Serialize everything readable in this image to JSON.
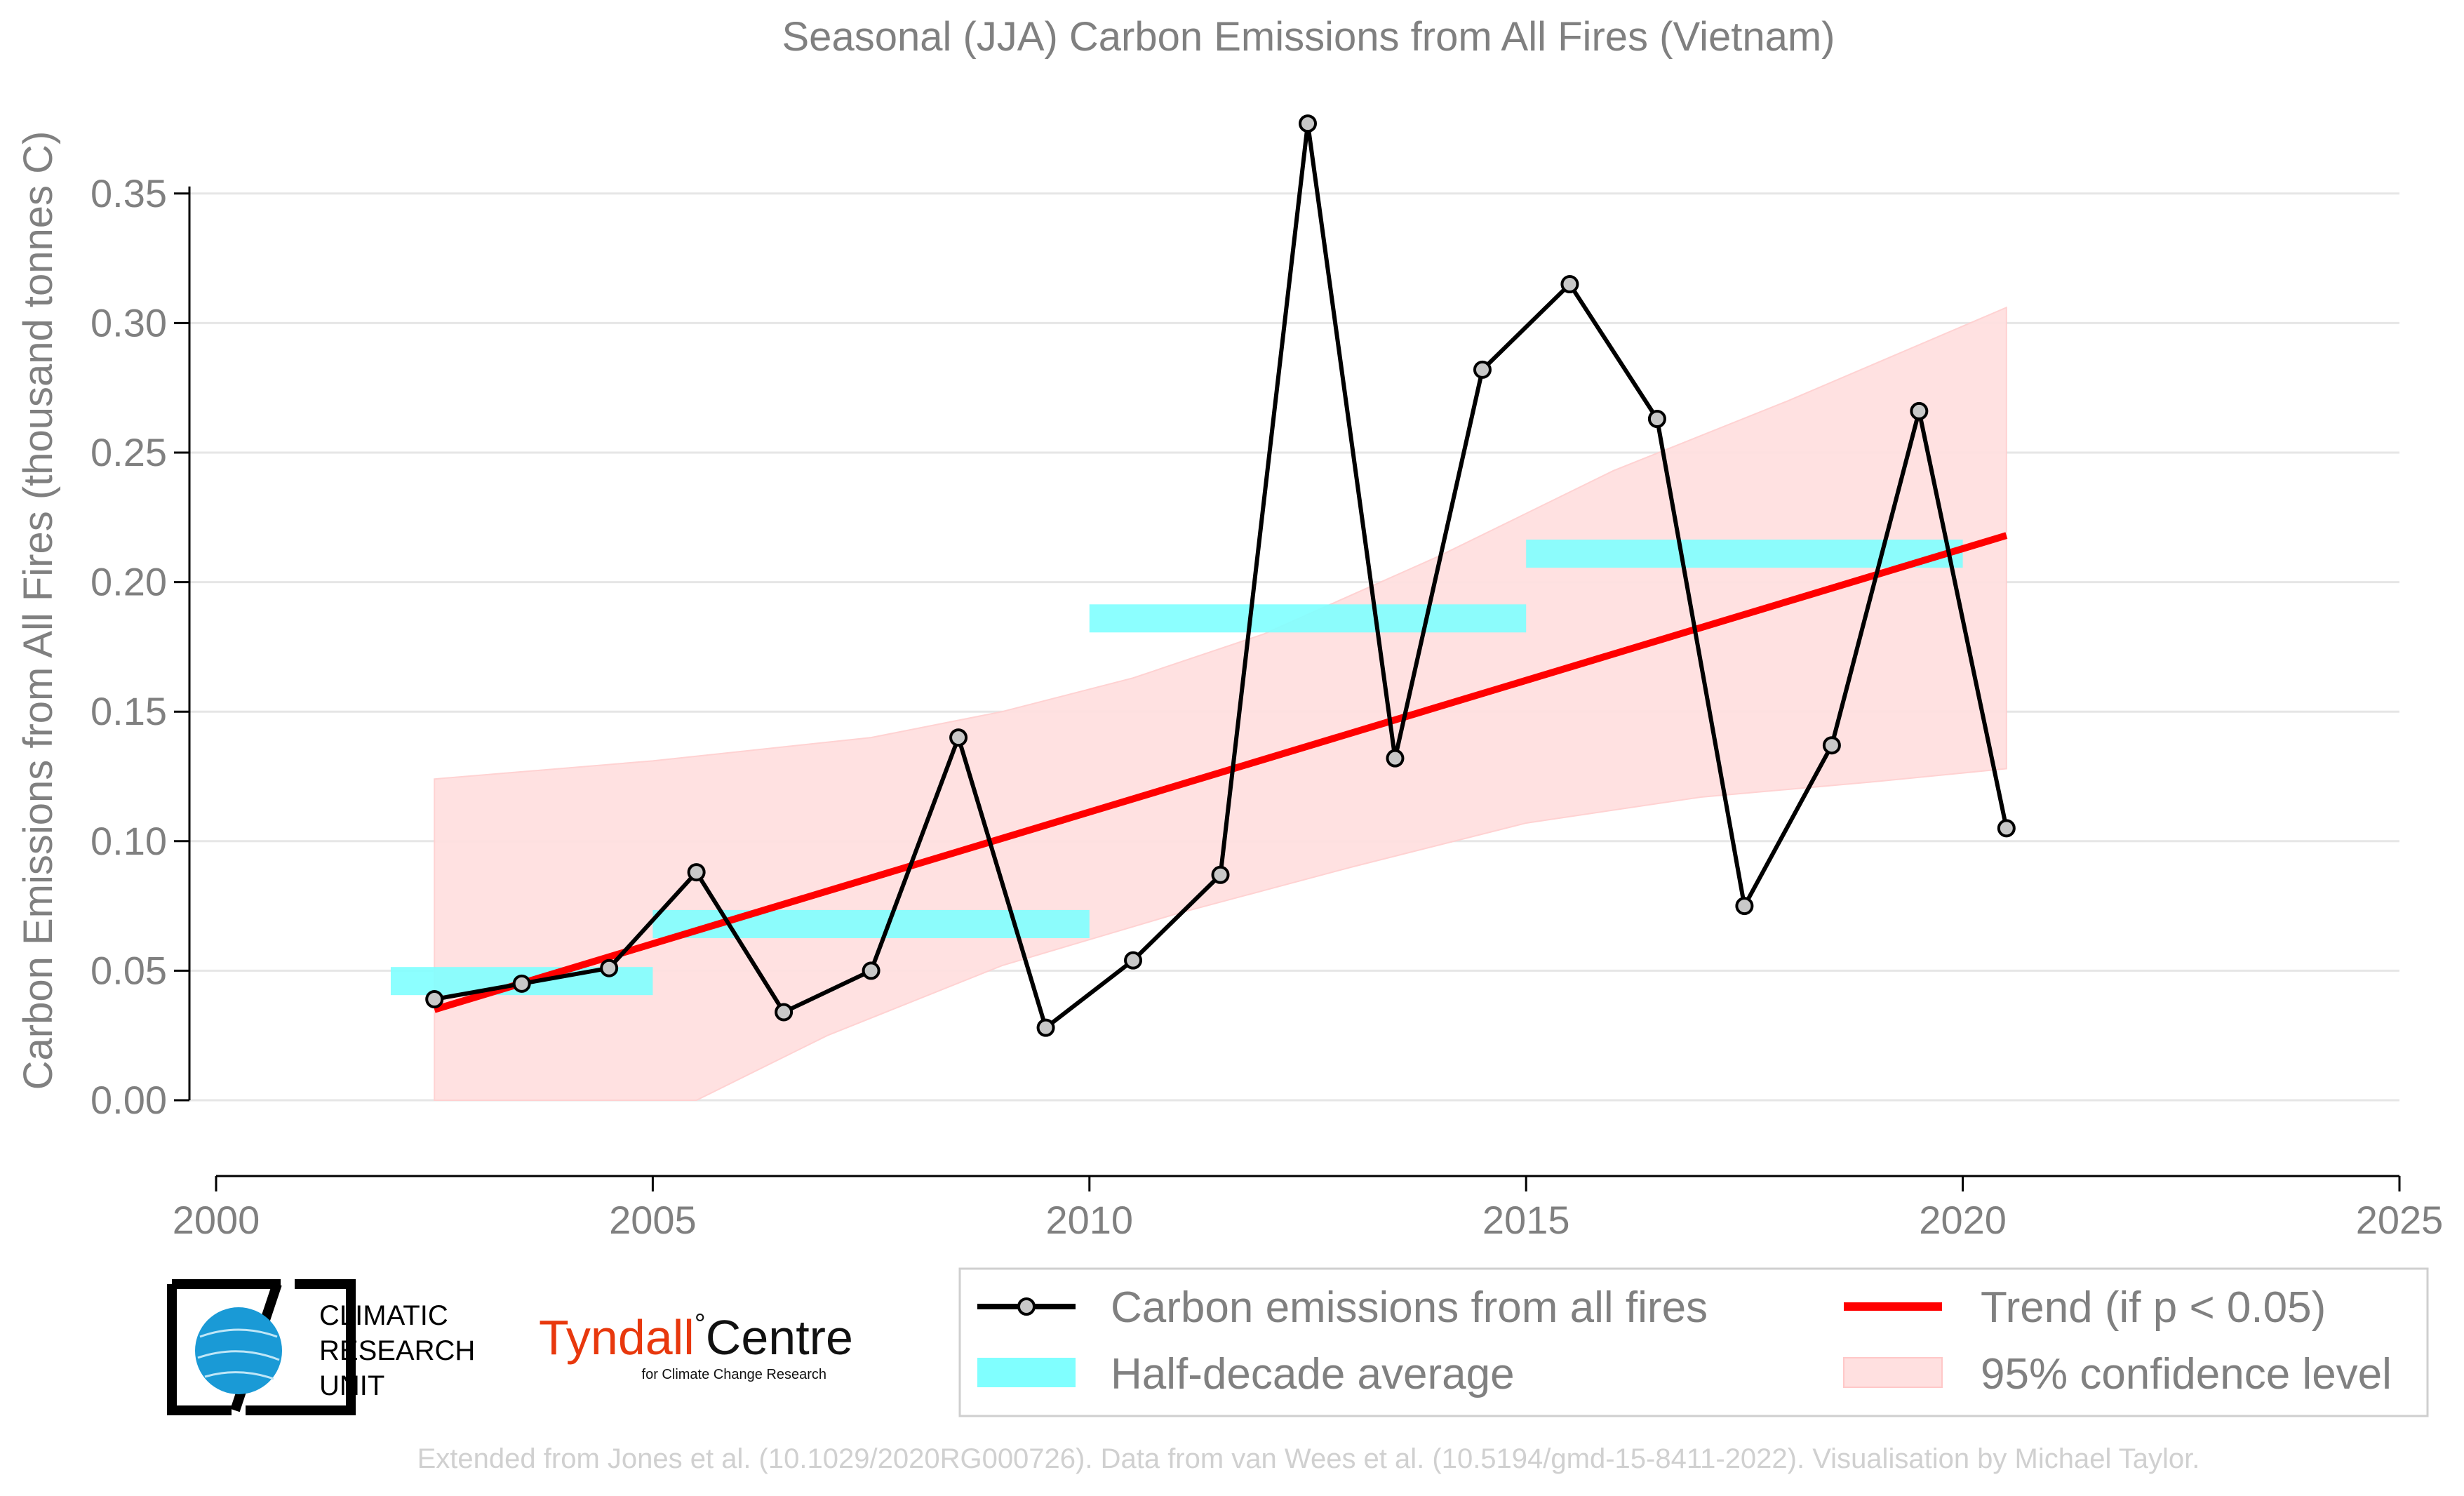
{
  "chart_data": {
    "type": "line",
    "title": "Seasonal (JJA) Carbon Emissions from All Fires (Vietnam)",
    "xlabel": "",
    "ylabel": "Carbon Emissions from All Fires (thousand tonnes C)",
    "xlim": [
      2000,
      2025
    ],
    "ylim": [
      -0.03,
      0.37
    ],
    "x_ticks": [
      2000,
      2005,
      2010,
      2015,
      2020,
      2025
    ],
    "y_ticks": [
      0.0,
      0.05,
      0.1,
      0.15,
      0.2,
      0.25,
      0.3,
      0.35
    ],
    "y_tick_labels": [
      "0.00",
      "0.05",
      "0.10",
      "0.15",
      "0.20",
      "0.25",
      "0.30",
      "0.35"
    ],
    "grid": "horizontal",
    "series": [
      {
        "name": "Carbon emissions from all fires",
        "type": "line",
        "color": "#000000",
        "marker_color": "#c8c8c8",
        "x": [
          2002.5,
          2003.5,
          2004.5,
          2005.5,
          2006.5,
          2007.5,
          2008.5,
          2009.5,
          2010.5,
          2011.5,
          2012.5,
          2013.5,
          2014.5,
          2015.5,
          2016.5,
          2017.5,
          2018.5,
          2019.5,
          2020.5
        ],
        "y": [
          0.039,
          0.045,
          0.051,
          0.088,
          0.034,
          0.05,
          0.14,
          0.028,
          0.054,
          0.087,
          0.377,
          0.132,
          0.282,
          0.315,
          0.263,
          0.075,
          0.137,
          0.266,
          0.105
        ]
      },
      {
        "name": "Half-decade average",
        "type": "step",
        "color": "#80ffff",
        "segments": [
          {
            "x0": 2002.0,
            "x1": 2005.0,
            "y": 0.046
          },
          {
            "x0": 2005.0,
            "x1": 2010.0,
            "y": 0.068
          },
          {
            "x0": 2010.0,
            "x1": 2015.0,
            "y": 0.186
          },
          {
            "x0": 2015.0,
            "x1": 2020.0,
            "y": 0.211
          }
        ]
      },
      {
        "name": "Trend (if p < 0.05)",
        "type": "line",
        "color": "#ff0000",
        "x": [
          2002.5,
          2020.5
        ],
        "y": [
          0.035,
          0.218
        ]
      },
      {
        "name": "95% confidence level",
        "type": "area",
        "color": "#ffe0e0",
        "x": [
          2002.5,
          2005.0,
          2007.5,
          2009.0,
          2010.5,
          2012.0,
          2014.0,
          2016.0,
          2018.0,
          2020.5
        ],
        "upper": [
          0.124,
          0.131,
          0.14,
          0.15,
          0.163,
          0.18,
          0.21,
          0.243,
          0.27,
          0.306
        ],
        "lower": [
          0.0,
          0.0,
          0.0,
          0.0,
          0.0,
          0.0,
          0.0,
          0.0,
          0.0,
          0.0
        ],
        "lower_curve": [
          [
            2002.5,
            0.0
          ],
          [
            2005.5,
            0.0
          ],
          [
            2007.0,
            0.025
          ],
          [
            2009.0,
            0.052
          ],
          [
            2011.0,
            0.072
          ],
          [
            2013.0,
            0.09
          ],
          [
            2015.0,
            0.107
          ],
          [
            2017.0,
            0.117
          ],
          [
            2019.0,
            0.123
          ],
          [
            2020.5,
            0.128
          ]
        ]
      }
    ],
    "legend": {
      "placement": "bottom-right",
      "entries": [
        "Carbon emissions from all fires",
        "Trend (if p < 0.05)",
        "Half-decade average",
        "95% confidence level"
      ]
    }
  },
  "logos": {
    "cru": [
      "CLIMATIC",
      "RESEARCH",
      "UNIT"
    ],
    "tyndall_main": "Tyndall",
    "tyndall_degree": "°",
    "tyndall_centre": "Centre",
    "tyndall_sub": "for Climate Change Research"
  },
  "footer": "Extended from Jones et al. (10.1029/2020RG000726). Data from van Wees et al. (10.5194/gmd-15-8411-2022). Visualisation by Michael Taylor."
}
